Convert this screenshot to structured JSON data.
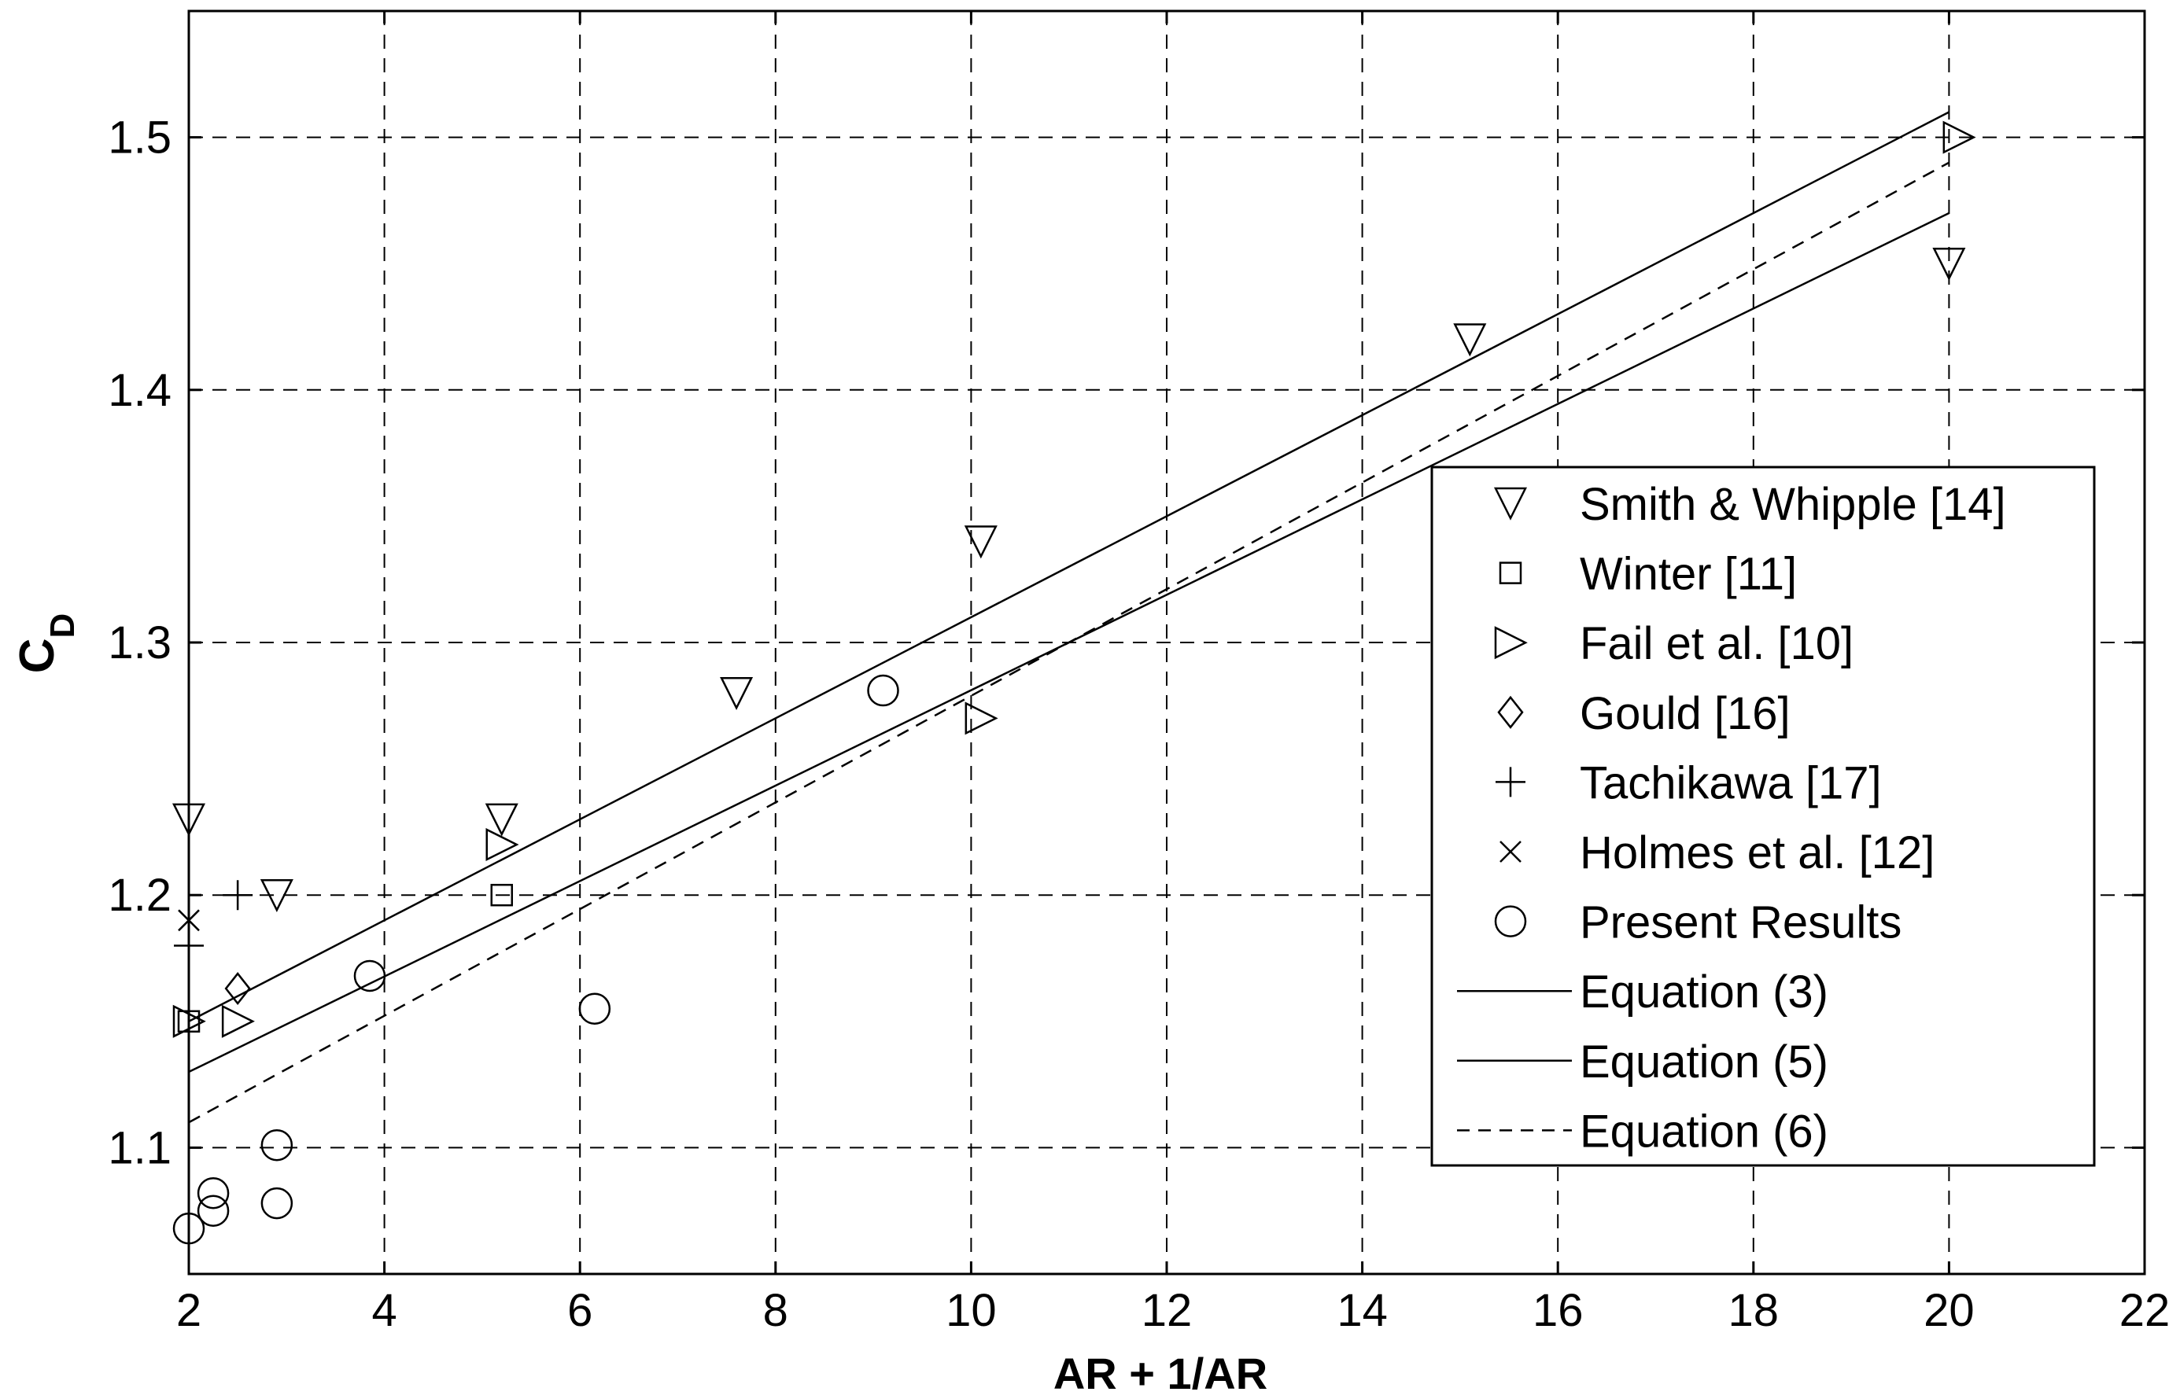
{
  "chart_data": {
    "type": "scatter",
    "xlabel": "AR + 1/AR",
    "ylabel_main": "C",
    "ylabel_sub": "D",
    "xlim": [
      2,
      22
    ],
    "ylim": [
      1.05,
      1.55
    ],
    "x_ticks": [
      2,
      4,
      6,
      8,
      10,
      12,
      14,
      16,
      18,
      20,
      22
    ],
    "x_tick_labels": [
      "2",
      "4",
      "6",
      "8",
      "10",
      "12",
      "14",
      "16",
      "18",
      "20",
      "22"
    ],
    "y_ticks": [
      1.1,
      1.2,
      1.3,
      1.4,
      1.5
    ],
    "y_tick_labels": [
      "1.1",
      "1.2",
      "1.3",
      "1.4",
      "1.5"
    ],
    "grid": true,
    "legend_position": "right",
    "series": [
      {
        "name": "Smith & Whipple [14]",
        "marker": "triangle-down",
        "x": [
          2,
          2.9,
          5.2,
          7.6,
          10.1,
          15.1,
          20
        ],
        "y": [
          1.23,
          1.2,
          1.23,
          1.28,
          1.34,
          1.42,
          1.45
        ]
      },
      {
        "name": "Winter [11]",
        "marker": "square",
        "x": [
          2,
          5.2
        ],
        "y": [
          1.15,
          1.2
        ]
      },
      {
        "name": "Fail et al. [10]",
        "marker": "triangle-right",
        "x": [
          2,
          2.5,
          5.2,
          10.1,
          20.1
        ],
        "y": [
          1.15,
          1.15,
          1.22,
          1.27,
          1.5
        ]
      },
      {
        "name": "Gould [16]",
        "marker": "diamond",
        "x": [
          2.5
        ],
        "y": [
          1.163
        ]
      },
      {
        "name": "Tachikawa [17]",
        "marker": "plus",
        "x": [
          2,
          2.5
        ],
        "y": [
          1.18,
          1.2
        ]
      },
      {
        "name": "Holmes et al. [12]",
        "marker": "x",
        "x": [
          2
        ],
        "y": [
          1.19
        ]
      },
      {
        "name": "Present Results",
        "marker": "circle",
        "x": [
          2,
          2.25,
          2.25,
          2.9,
          2.9,
          3.85,
          6.15,
          9.1
        ],
        "y": [
          1.068,
          1.075,
          1.082,
          1.078,
          1.101,
          1.168,
          1.155,
          1.281
        ]
      },
      {
        "name": "Equation (3)",
        "marker": "none",
        "line": "solid",
        "x": [
          2,
          20
        ],
        "y": [
          1.15,
          1.51
        ]
      },
      {
        "name": "Equation (5)",
        "marker": "none",
        "line": "solid",
        "x": [
          2,
          20
        ],
        "y": [
          1.13,
          1.47
        ]
      },
      {
        "name": "Equation (6)",
        "marker": "none",
        "line": "dashed",
        "x": [
          2,
          20
        ],
        "y": [
          1.11,
          1.49
        ]
      }
    ]
  }
}
